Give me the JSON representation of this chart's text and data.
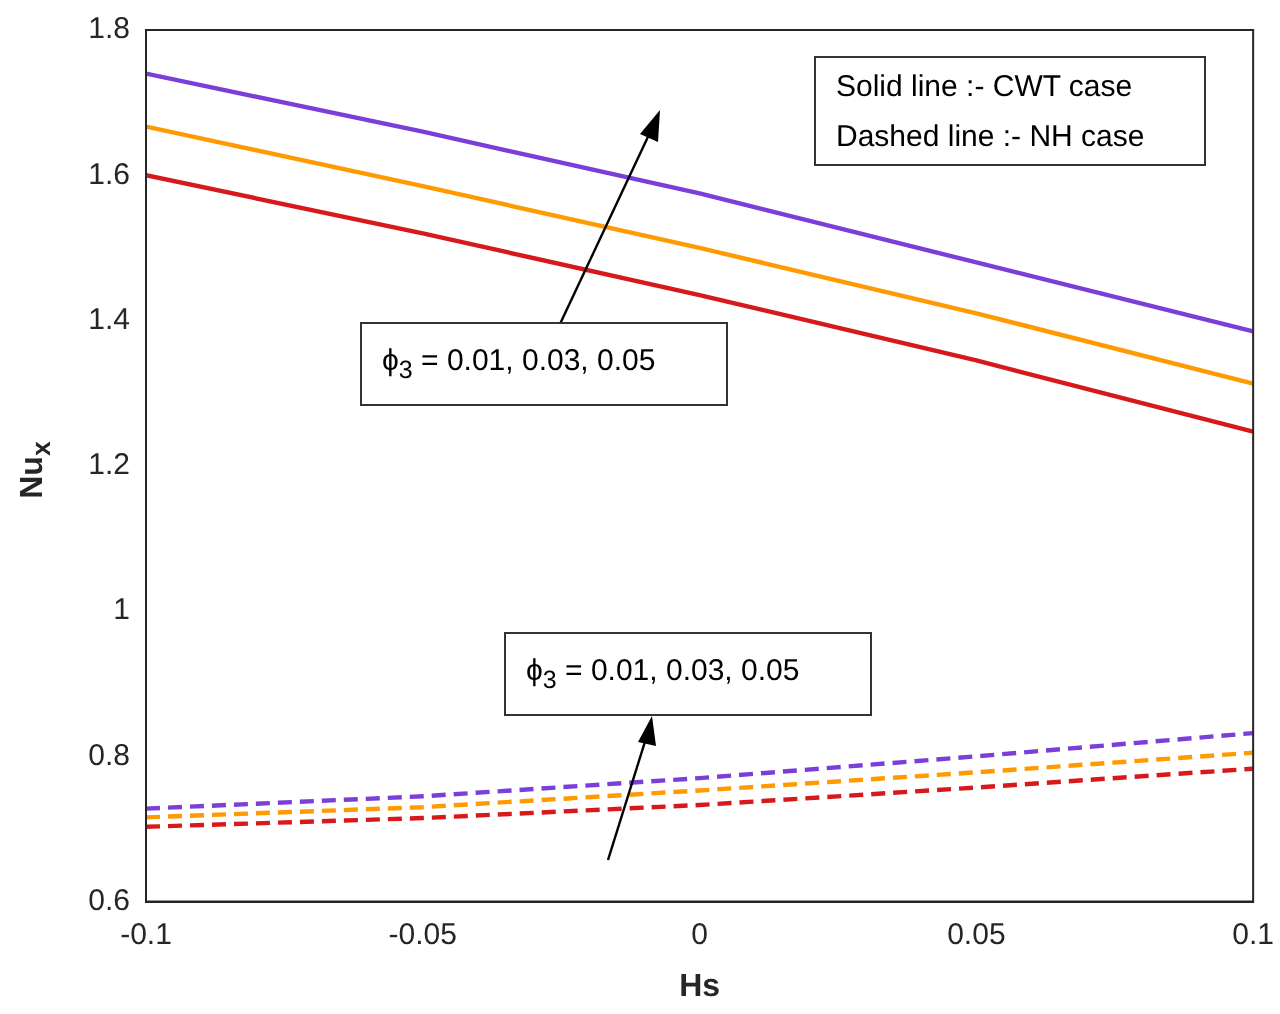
{
  "chart_data": {
    "type": "line",
    "xlabel": "Hs",
    "ylabel": "Nu$_{x}$",
    "x": [
      -0.1,
      -0.05,
      0,
      0.05,
      0.1
    ],
    "series": [
      {
        "color": "#7b3fd9",
        "line_style": "solid",
        "values": [
          1.74,
          1.66,
          1.575,
          1.48,
          1.385
        ]
      },
      {
        "color": "#ff9a00",
        "line_style": "solid",
        "values": [
          1.667,
          1.585,
          1.5,
          1.41,
          1.313
        ]
      },
      {
        "color": "#d7191c",
        "line_style": "solid",
        "values": [
          1.6,
          1.52,
          1.435,
          1.345,
          1.247
        ]
      },
      {
        "color": "#7b3fd9",
        "line_style": "dashed",
        "values": [
          0.728,
          0.745,
          0.77,
          0.8,
          0.832
        ]
      },
      {
        "color": "#ff9a00",
        "line_style": "dashed",
        "values": [
          0.716,
          0.73,
          0.753,
          0.778,
          0.805
        ]
      },
      {
        "color": "#d7191c",
        "line_style": "dashed",
        "values": [
          0.703,
          0.715,
          0.733,
          0.757,
          0.783
        ]
      }
    ],
    "xlim": [
      -0.1,
      0.1
    ],
    "xticks": [
      -0.1,
      -0.05,
      0,
      0.05,
      0.1
    ],
    "ylim": [
      0.6,
      1.8
    ],
    "yticks": [
      0.6,
      0.8,
      1,
      1.2,
      1.4,
      1.6,
      1.8
    ],
    "grid": false,
    "legend": false,
    "marker": "none",
    "annotations": [
      "Solid line :- CWT case\nDashed line :- NH case",
      "ϕ$_{3}$ = 0.01, 0.03, 0.05",
      "ϕ$_{3}$ = 0.01, 0.03, 0.05"
    ]
  }
}
